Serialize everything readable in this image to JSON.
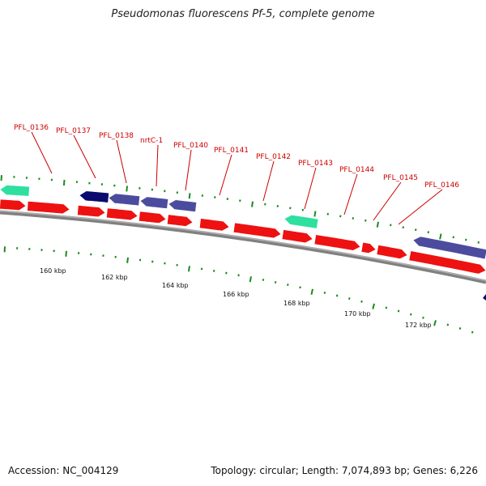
{
  "title": "Pseudomonas fluorescens Pf-5, complete genome",
  "footer": {
    "accession": "Accession: NC_004129",
    "summary": "Topology: circular; Length: 7,074,893 bp; Genes: 6,226"
  },
  "colors": {
    "forward_cds": "#ee1111",
    "reverse_cds": "#4c4c9e",
    "dark_reverse": "#0b0b6e",
    "rna_gene": "#2de0a0",
    "gene_label": "#cc0000",
    "tick": "#1c8a1c",
    "backbone": "#808080"
  },
  "gene_labels": [
    "PFL_0136",
    "PFL_0137",
    "PFL_0138",
    "nrtC-1",
    "PFL_0140",
    "PFL_0141",
    "PFL_0142",
    "PFL_0143",
    "PFL_0144",
    "PFL_0145",
    "PFL_0146"
  ],
  "scale_labels": [
    "160 kbp",
    "162 kbp",
    "164 kbp",
    "166 kbp",
    "168 kbp",
    "170 kbp",
    "172 kbp"
  ]
}
